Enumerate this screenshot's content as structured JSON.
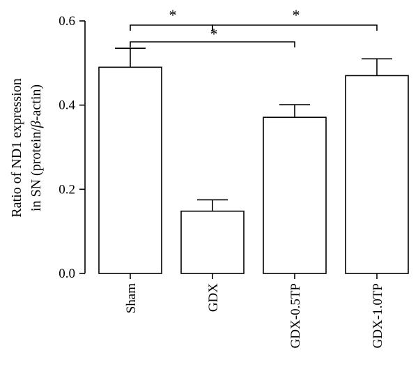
{
  "chart_data": {
    "type": "bar",
    "categories": [
      "Sham",
      "GDX",
      "GDX-0.5TP",
      "GDX-1.0TP"
    ],
    "values": [
      0.49,
      0.148,
      0.371,
      0.47
    ],
    "errors": [
      0.045,
      0.027,
      0.03,
      0.04
    ],
    "ylim": [
      0,
      0.6
    ],
    "yticks": [
      "0.0",
      "0.2",
      "0.4",
      "0.6"
    ],
    "ylabel_line1": "Ratio of ND1 expression",
    "ylabel_line2_prefix": "in SN (protein/",
    "ylabel_line2_symbol": "β",
    "ylabel_line2_suffix": "-actin)",
    "bar_fill": "#ffffff",
    "bar_stroke": "#000000",
    "significance": [
      {
        "from": 0,
        "to": 1,
        "label": "*"
      },
      {
        "from": 1,
        "to": 3,
        "label": "*"
      },
      {
        "from": 0,
        "to": 2,
        "label": "*"
      }
    ]
  }
}
